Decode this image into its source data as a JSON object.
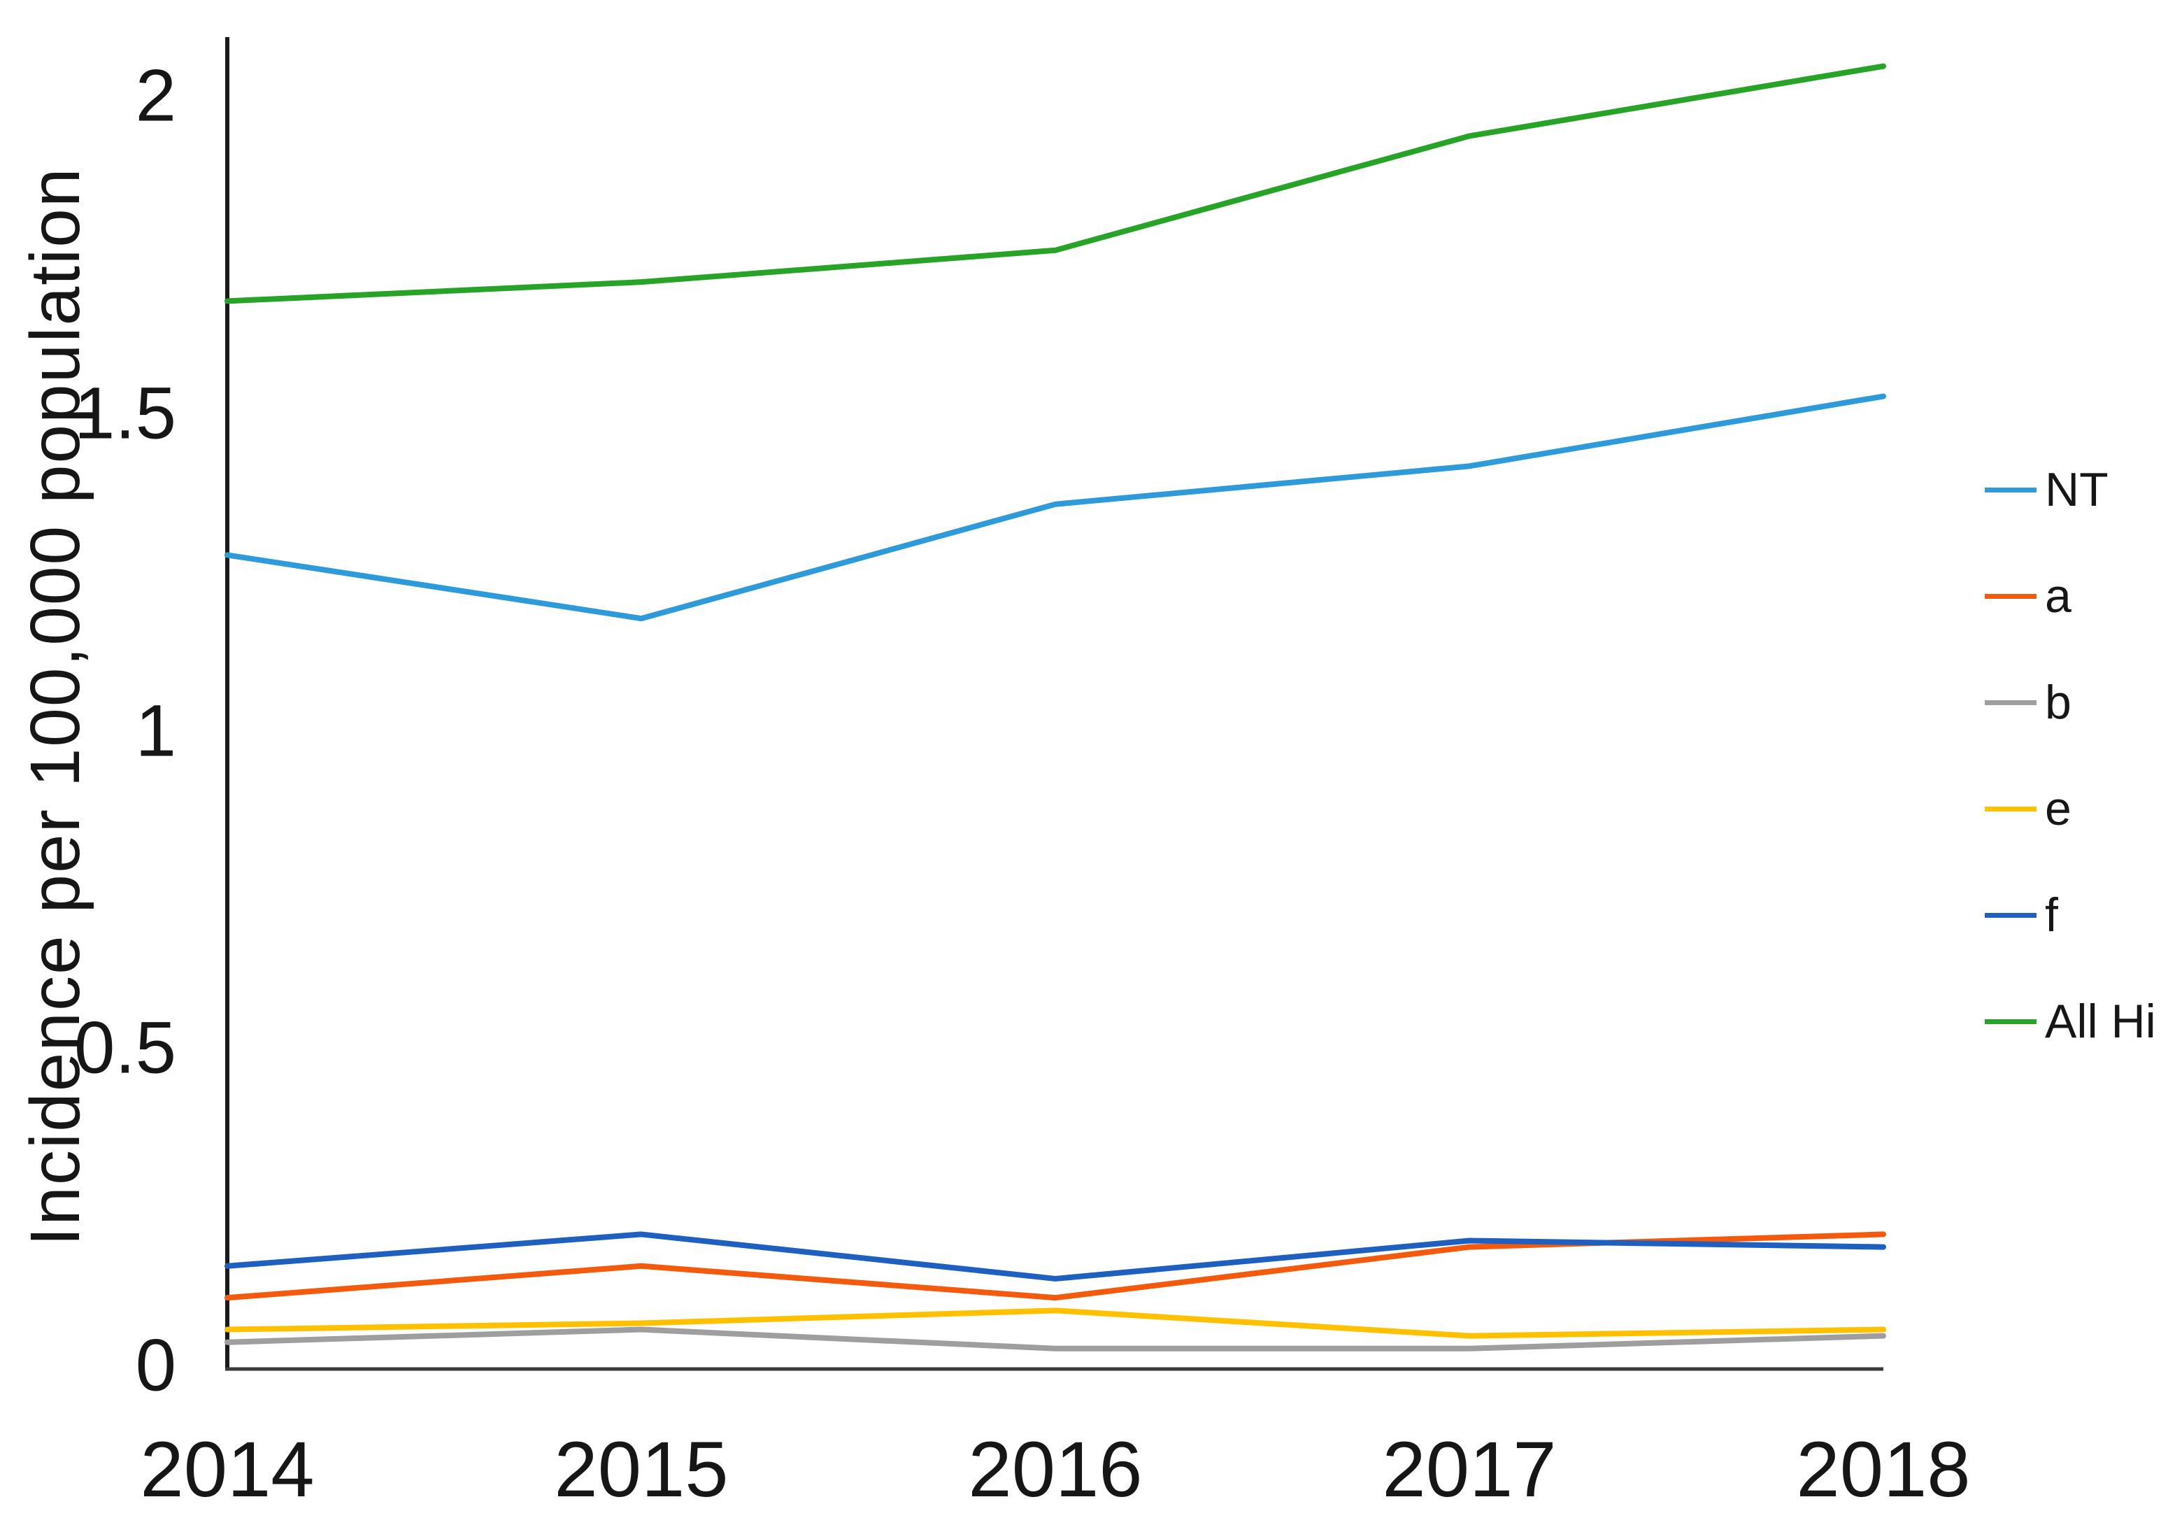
{
  "chart_data": {
    "type": "line",
    "title": "",
    "xlabel": "",
    "ylabel": "Incidence per 100,000 population",
    "categories": [
      "2014",
      "2015",
      "2016",
      "2017",
      "2018"
    ],
    "yticks": [
      {
        "value": 0,
        "label": "0"
      },
      {
        "value": 0.5,
        "label": "0.5"
      },
      {
        "value": 1,
        "label": "1"
      },
      {
        "value": 1.5,
        "label": "1.5"
      },
      {
        "value": 2,
        "label": "2"
      }
    ],
    "ylim": [
      0,
      2.1
    ],
    "grid": false,
    "legend_position": "right",
    "axis_color": "#1a1a1a",
    "series": [
      {
        "name": "NT",
        "color": "#2e9ad9",
        "values": [
          1.28,
          1.18,
          1.36,
          1.42,
          1.53
        ]
      },
      {
        "name": "a",
        "color": "#f45a0e",
        "values": [
          0.11,
          0.16,
          0.11,
          0.19,
          0.21
        ]
      },
      {
        "name": "b",
        "color": "#9e9e9e",
        "values": [
          0.04,
          0.06,
          0.03,
          0.03,
          0.05
        ]
      },
      {
        "name": "e",
        "color": "#ffc000",
        "values": [
          0.06,
          0.07,
          0.09,
          0.05,
          0.06
        ]
      },
      {
        "name": "f",
        "color": "#1e5fc0",
        "values": [
          0.16,
          0.21,
          0.14,
          0.2,
          0.19
        ]
      },
      {
        "name": "All Hi",
        "color": "#27a327",
        "values": [
          1.68,
          1.71,
          1.76,
          1.94,
          2.05
        ]
      }
    ]
  }
}
